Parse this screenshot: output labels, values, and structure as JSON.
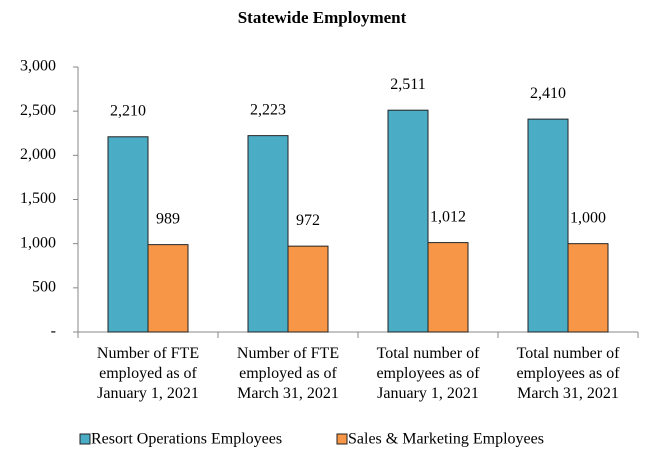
{
  "chart_data": {
    "type": "bar",
    "title": "Statewide Employment",
    "categories": [
      "Number of FTE employed as of January 1, 2021",
      "Number of FTE employed as of March 31, 2021",
      "Total number of employees as of January 1, 2021",
      "Total number of employees as of March 31, 2021"
    ],
    "series": [
      {
        "name": "Resort Operations Employees",
        "color": "#4bacc6",
        "values": [
          2210,
          2223,
          2511,
          2410
        ],
        "value_labels": [
          "2,210",
          "2,223",
          "2,511",
          "2,410"
        ]
      },
      {
        "name": "Sales & Marketing Employees",
        "color": "#f79646",
        "values": [
          989,
          972,
          1012,
          1000
        ],
        "value_labels": [
          "989",
          "972",
          "1,012",
          "1,000"
        ]
      }
    ],
    "ylim": [
      0,
      3000
    ],
    "yticks": [
      {
        "value": 0,
        "label": "-"
      },
      500,
      {
        "value": 1000,
        "label": "1,000"
      },
      {
        "value": 1500,
        "label": "1,500"
      },
      {
        "value": 2000,
        "label": "2,000"
      },
      {
        "value": 2500,
        "label": "2,500"
      },
      {
        "value": 3000,
        "label": "3,000"
      }
    ],
    "grid": false,
    "legend": "bottom"
  }
}
